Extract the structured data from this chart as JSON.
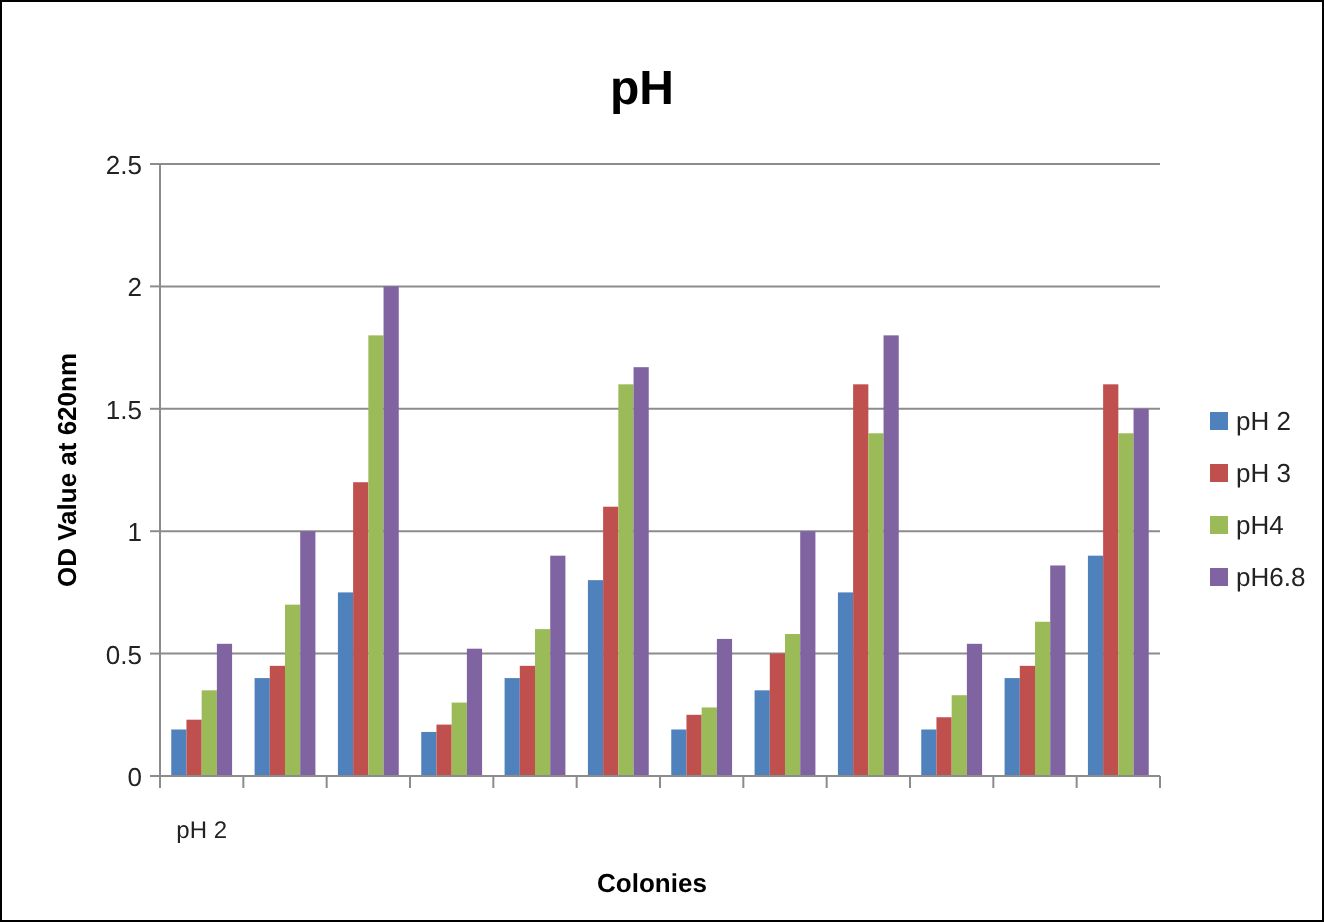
{
  "chart_data": {
    "type": "bar",
    "title": "pH",
    "xlabel": "Colonies",
    "ylabel": "OD  Value at 620nm",
    "categories": [
      "pH 2",
      null,
      null,
      null,
      null,
      null,
      null,
      null,
      null,
      null,
      null,
      null
    ],
    "series": [
      {
        "name": "pH 2",
        "color": "#4f81bd",
        "values": [
          0.19,
          0.4,
          0.75,
          0.18,
          0.4,
          0.8,
          0.19,
          0.35,
          0.75,
          0.19,
          0.4,
          0.9
        ]
      },
      {
        "name": "pH 3",
        "color": "#c0504d",
        "values": [
          0.23,
          0.45,
          1.2,
          0.21,
          0.45,
          1.1,
          0.25,
          0.5,
          1.6,
          0.24,
          0.45,
          1.6
        ]
      },
      {
        "name": "pH4",
        "color": "#9bbb59",
        "values": [
          0.35,
          0.7,
          1.8,
          0.3,
          0.6,
          1.6,
          0.28,
          0.58,
          1.4,
          0.33,
          0.63,
          1.4
        ]
      },
      {
        "name": "pH6.8",
        "color": "#8064a2",
        "values": [
          0.54,
          1.0,
          2.0,
          0.52,
          0.9,
          1.67,
          0.56,
          1.0,
          1.8,
          0.54,
          0.86,
          1.5
        ]
      }
    ],
    "ylim": [
      0,
      2.5
    ],
    "yticks": [
      0,
      0.5,
      1,
      1.5,
      2,
      2.5
    ],
    "grid": "y",
    "legend": "right"
  }
}
